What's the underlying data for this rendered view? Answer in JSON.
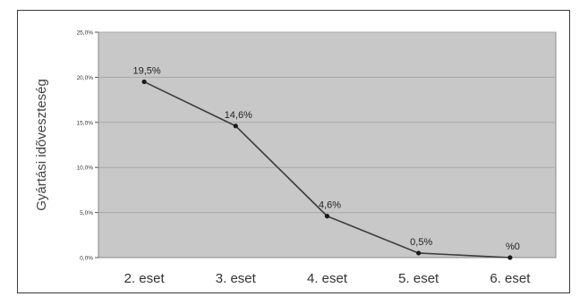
{
  "chart_data": {
    "type": "line",
    "ylabel": "Gyártási idõveszteség",
    "categories": [
      "2. eset",
      "3. eset",
      "4. eset",
      "5. eset",
      "6. eset"
    ],
    "values": [
      19.5,
      14.6,
      4.6,
      0.5,
      0
    ],
    "data_labels": [
      "19,5%",
      "14,6%",
      "4,6%",
      "0,5%",
      "%0"
    ],
    "y_ticks": [
      0,
      5,
      10,
      15,
      20,
      25
    ],
    "y_tick_labels": [
      "0,0%",
      "5,0%",
      "10,0%",
      "15,0%",
      "20,0%",
      "25,0%"
    ],
    "ylim": [
      0,
      25
    ],
    "grid": true,
    "legend": "none",
    "colors": {
      "plot_background": "#c8c8c8",
      "gridline": "#a8a8a8",
      "line": "#3c3c3c",
      "marker": "#1a1a1a"
    }
  }
}
